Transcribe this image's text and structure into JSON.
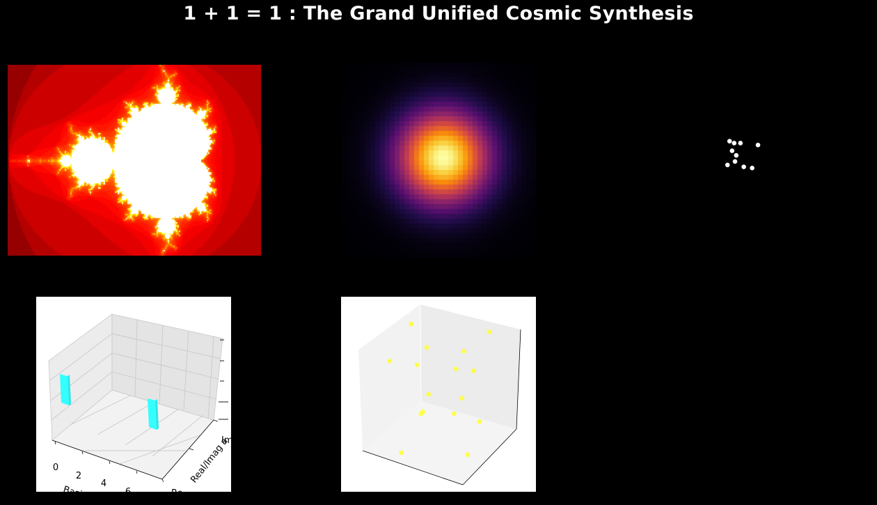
{
  "page": {
    "title": "1 + 1 = 1 : The Grand Unified Cosmic Synthesis"
  },
  "colors": {
    "background": "#000000",
    "title": "#ffffff",
    "bar_color": "#33ffff",
    "scatter_color": "#ffff33",
    "network_nodes": "#ffffff"
  },
  "chart_data": [
    {
      "type": "heatmap",
      "colormap": "hot",
      "fractal": "mandelbrot",
      "grid": false
    },
    {
      "type": "heatmap",
      "colormap": "inferno",
      "pattern": "gaussian",
      "grid": false
    },
    {
      "type": "scatter",
      "style": "network graph",
      "grid": false,
      "x": [
        0.22,
        0.33,
        0.48,
        0.9,
        0.28,
        0.38,
        0.35,
        0.17,
        0.56,
        0.76
      ],
      "y": [
        0.14,
        0.19,
        0.19,
        0.24,
        0.39,
        0.51,
        0.67,
        0.76,
        0.81,
        0.84
      ]
    },
    {
      "type": "bar",
      "projection": "3d",
      "xlabel": "Basis",
      "ylabel": "Real/Imag a",
      "x_ticks": [
        "0",
        "2",
        "4",
        "6"
      ],
      "y_ticks": [
        "Im",
        "Re"
      ],
      "series": [
        {
          "x": 0,
          "y": 1,
          "height": 0.5
        },
        {
          "x": 7,
          "y": 1,
          "height": 0.5
        }
      ]
    },
    {
      "type": "scatter",
      "projection": "3d",
      "points": [
        [
          0.36,
          0.14
        ],
        [
          0.44,
          0.26
        ],
        [
          0.76,
          0.18
        ],
        [
          0.63,
          0.28
        ],
        [
          0.25,
          0.33
        ],
        [
          0.39,
          0.35
        ],
        [
          0.59,
          0.37
        ],
        [
          0.68,
          0.38
        ],
        [
          0.45,
          0.5
        ],
        [
          0.62,
          0.52
        ],
        [
          0.41,
          0.6
        ],
        [
          0.42,
          0.59
        ],
        [
          0.58,
          0.6
        ],
        [
          0.71,
          0.64
        ],
        [
          0.31,
          0.8
        ],
        [
          0.65,
          0.81
        ]
      ]
    }
  ]
}
